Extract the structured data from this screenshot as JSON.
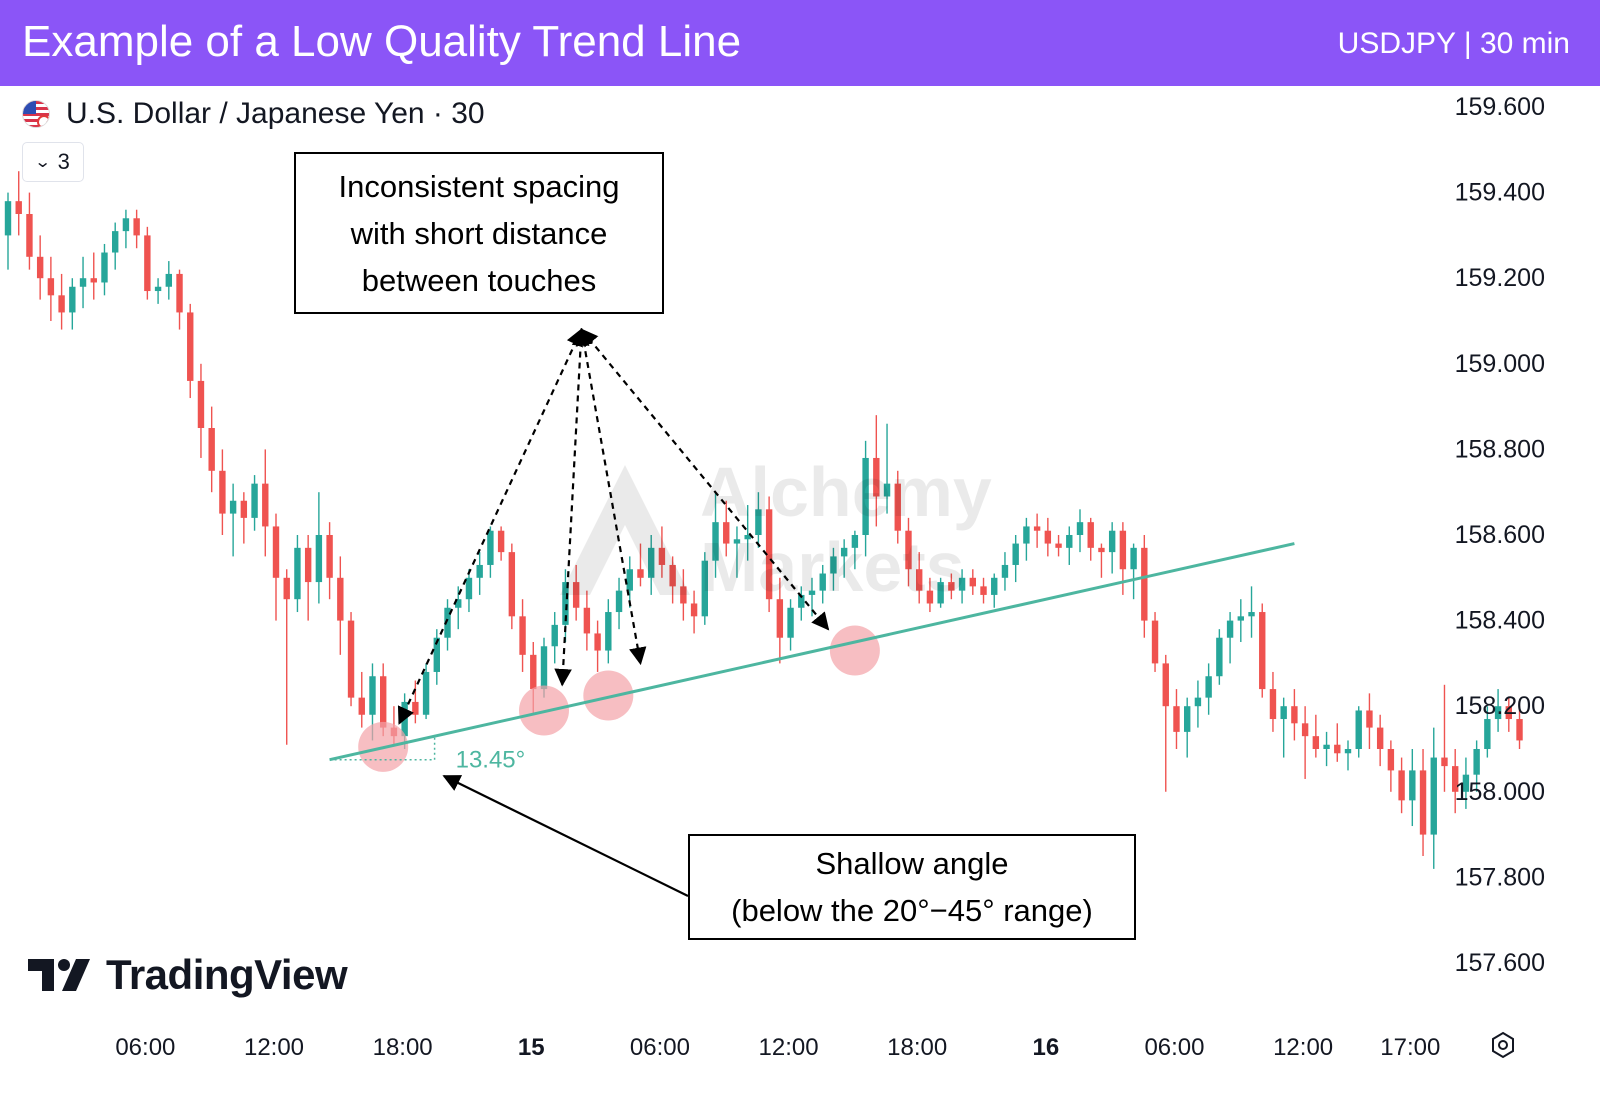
{
  "banner": {
    "title": "Example of a Low Quality Trend Line",
    "subtitle": "USDJPY | 30 min"
  },
  "header": {
    "symbol_title": "U.S. Dollar / Japanese Yen · 30",
    "indicator_count": "3"
  },
  "watermark": {
    "line1": "Alchemy",
    "line2": "Markets"
  },
  "brand": {
    "logo_text": "TradingView"
  },
  "colors": {
    "banner": "#8b55f7",
    "up_candle": "#26a69a",
    "down_candle": "#ef5350",
    "trend_line": "#4db6a0",
    "touch_marker": "#f4a3a8"
  },
  "annotations": {
    "spacing": [
      "Inconsistent spacing",
      "with short distance",
      "between touches"
    ],
    "angle": [
      "Shallow angle",
      "(below the 20°−45° range)"
    ]
  },
  "chart_data": {
    "type": "candlestick",
    "symbol": "USDJPY",
    "interval": "30 min",
    "y_axis": {
      "ticks": [
        {
          "value": 159.6,
          "label": "159.600"
        },
        {
          "value": 159.4,
          "label": "159.400"
        },
        {
          "value": 159.2,
          "label": "159.200"
        },
        {
          "value": 159.0,
          "label": "159.000"
        },
        {
          "value": 158.8,
          "label": "158.800"
        },
        {
          "value": 158.6,
          "label": "158.600"
        },
        {
          "value": 158.4,
          "label": "158.400"
        },
        {
          "value": 158.2,
          "label": "158.200"
        },
        {
          "value": 158.0,
          "label": "158.000"
        },
        {
          "value": 157.8,
          "label": "157.800"
        },
        {
          "value": 157.6,
          "label": "157.600"
        }
      ],
      "range": [
        157.55,
        159.62
      ]
    },
    "x_axis": {
      "ticks": [
        {
          "index": 13,
          "label": "06:00",
          "bold": false
        },
        {
          "index": 25,
          "label": "12:00",
          "bold": false
        },
        {
          "index": 37,
          "label": "18:00",
          "bold": false
        },
        {
          "index": 49,
          "label": "15",
          "bold": true
        },
        {
          "index": 61,
          "label": "06:00",
          "bold": false
        },
        {
          "index": 73,
          "label": "12:00",
          "bold": false
        },
        {
          "index": 85,
          "label": "18:00",
          "bold": false
        },
        {
          "index": 97,
          "label": "16",
          "bold": true
        },
        {
          "index": 109,
          "label": "06:00",
          "bold": false
        },
        {
          "index": 121,
          "label": "12:00",
          "bold": false
        },
        {
          "index": 131,
          "label": "17:00",
          "bold": false
        }
      ]
    },
    "candles": [
      [
        159.3,
        159.4,
        159.22,
        159.38
      ],
      [
        159.38,
        159.45,
        159.3,
        159.35
      ],
      [
        159.35,
        159.4,
        159.22,
        159.25
      ],
      [
        159.25,
        159.3,
        159.15,
        159.2
      ],
      [
        159.2,
        159.25,
        159.1,
        159.16
      ],
      [
        159.16,
        159.21,
        159.08,
        159.12
      ],
      [
        159.12,
        159.2,
        159.08,
        159.18
      ],
      [
        159.18,
        159.25,
        159.13,
        159.2
      ],
      [
        159.2,
        159.26,
        159.15,
        159.19
      ],
      [
        159.19,
        159.28,
        159.16,
        159.26
      ],
      [
        159.26,
        159.33,
        159.22,
        159.31
      ],
      [
        159.31,
        159.36,
        159.27,
        159.34
      ],
      [
        159.34,
        159.36,
        159.27,
        159.3
      ],
      [
        159.3,
        159.32,
        159.15,
        159.17
      ],
      [
        159.17,
        159.2,
        159.14,
        159.18
      ],
      [
        159.18,
        159.24,
        159.15,
        159.21
      ],
      [
        159.21,
        159.22,
        159.08,
        159.12
      ],
      [
        159.12,
        159.14,
        158.92,
        158.96
      ],
      [
        158.96,
        159.0,
        158.78,
        158.85
      ],
      [
        158.85,
        158.9,
        158.7,
        158.75
      ],
      [
        158.75,
        158.8,
        158.6,
        158.65
      ],
      [
        158.65,
        158.72,
        158.55,
        158.68
      ],
      [
        158.68,
        158.7,
        158.58,
        158.64
      ],
      [
        158.64,
        158.74,
        158.61,
        158.72
      ],
      [
        158.72,
        158.8,
        158.55,
        158.62
      ],
      [
        158.62,
        158.65,
        158.4,
        158.5
      ],
      [
        158.5,
        158.52,
        158.11,
        158.45
      ],
      [
        158.45,
        158.6,
        158.42,
        158.57
      ],
      [
        158.57,
        158.6,
        158.4,
        158.49
      ],
      [
        158.49,
        158.7,
        158.44,
        158.6
      ],
      [
        158.6,
        158.63,
        158.45,
        158.5
      ],
      [
        158.5,
        158.55,
        158.32,
        158.4
      ],
      [
        158.4,
        158.42,
        158.2,
        158.22
      ],
      [
        158.22,
        158.28,
        158.15,
        158.18
      ],
      [
        158.18,
        158.3,
        158.12,
        158.27
      ],
      [
        158.27,
        158.3,
        158.13,
        158.15
      ],
      [
        158.15,
        158.2,
        158.11,
        158.13
      ],
      [
        158.13,
        158.23,
        158.1,
        158.21
      ],
      [
        158.21,
        158.26,
        158.16,
        158.18
      ],
      [
        158.18,
        158.3,
        158.17,
        158.28
      ],
      [
        158.28,
        158.38,
        158.25,
        158.36
      ],
      [
        158.36,
        158.45,
        158.33,
        158.43
      ],
      [
        158.43,
        158.48,
        158.38,
        158.45
      ],
      [
        158.45,
        158.52,
        158.42,
        158.5
      ],
      [
        158.5,
        158.56,
        158.46,
        158.53
      ],
      [
        158.53,
        158.62,
        158.5,
        158.61
      ],
      [
        158.61,
        158.62,
        158.54,
        158.56
      ],
      [
        158.56,
        158.58,
        158.38,
        158.41
      ],
      [
        158.41,
        158.45,
        158.28,
        158.32
      ],
      [
        158.32,
        158.35,
        158.18,
        158.24
      ],
      [
        158.24,
        158.36,
        158.22,
        158.34
      ],
      [
        158.34,
        158.42,
        158.3,
        158.39
      ],
      [
        158.39,
        158.52,
        158.35,
        158.49
      ],
      [
        158.49,
        158.53,
        158.4,
        158.43
      ],
      [
        158.43,
        158.47,
        158.33,
        158.37
      ],
      [
        158.37,
        158.4,
        158.28,
        158.33
      ],
      [
        158.33,
        158.45,
        158.3,
        158.42
      ],
      [
        158.42,
        158.5,
        158.38,
        158.47
      ],
      [
        158.47,
        158.55,
        158.43,
        158.52
      ],
      [
        158.52,
        158.58,
        158.48,
        158.5
      ],
      [
        158.5,
        158.6,
        158.46,
        158.57
      ],
      [
        158.57,
        158.62,
        158.5,
        158.53
      ],
      [
        158.53,
        158.55,
        158.44,
        158.48
      ],
      [
        158.48,
        158.52,
        158.4,
        158.44
      ],
      [
        158.44,
        158.47,
        158.37,
        158.41
      ],
      [
        158.41,
        158.56,
        158.39,
        158.54
      ],
      [
        158.54,
        158.7,
        158.5,
        158.63
      ],
      [
        158.63,
        158.68,
        158.55,
        158.58
      ],
      [
        158.58,
        158.62,
        158.5,
        158.59
      ],
      [
        158.59,
        158.67,
        158.54,
        158.6
      ],
      [
        158.6,
        158.7,
        158.57,
        158.66
      ],
      [
        158.66,
        158.69,
        158.42,
        158.45
      ],
      [
        158.45,
        158.5,
        158.3,
        158.36
      ],
      [
        158.36,
        158.45,
        158.33,
        158.43
      ],
      [
        158.43,
        158.48,
        158.4,
        158.46
      ],
      [
        158.46,
        158.5,
        158.41,
        158.47
      ],
      [
        158.47,
        158.53,
        158.44,
        158.51
      ],
      [
        158.51,
        158.57,
        158.47,
        158.55
      ],
      [
        158.55,
        158.59,
        158.5,
        158.57
      ],
      [
        158.57,
        158.61,
        158.52,
        158.6
      ],
      [
        158.6,
        158.82,
        158.55,
        158.78
      ],
      [
        158.78,
        158.88,
        158.62,
        158.69
      ],
      [
        158.69,
        158.86,
        158.65,
        158.72
      ],
      [
        158.72,
        158.75,
        158.58,
        158.61
      ],
      [
        158.61,
        158.64,
        158.48,
        158.52
      ],
      [
        158.52,
        158.56,
        158.44,
        158.47
      ],
      [
        158.47,
        158.5,
        158.42,
        158.44
      ],
      [
        158.44,
        158.5,
        158.43,
        158.49
      ],
      [
        158.49,
        158.51,
        158.45,
        158.47
      ],
      [
        158.47,
        158.52,
        158.44,
        158.5
      ],
      [
        158.5,
        158.52,
        158.46,
        158.48
      ],
      [
        158.48,
        158.5,
        158.44,
        158.46
      ],
      [
        158.46,
        158.51,
        158.43,
        158.5
      ],
      [
        158.5,
        158.56,
        158.47,
        158.53
      ],
      [
        158.53,
        158.6,
        158.49,
        158.58
      ],
      [
        158.58,
        158.64,
        158.54,
        158.62
      ],
      [
        158.62,
        158.65,
        158.57,
        158.61
      ],
      [
        158.61,
        158.64,
        158.55,
        158.58
      ],
      [
        158.58,
        158.6,
        158.55,
        158.57
      ],
      [
        158.57,
        158.62,
        158.53,
        158.6
      ],
      [
        158.6,
        158.66,
        158.56,
        158.63
      ],
      [
        158.63,
        158.64,
        158.54,
        158.57
      ],
      [
        158.57,
        158.58,
        158.5,
        158.56
      ],
      [
        158.56,
        158.63,
        158.51,
        158.61
      ],
      [
        158.61,
        158.63,
        158.46,
        158.52
      ],
      [
        158.52,
        158.58,
        158.45,
        158.57
      ],
      [
        158.57,
        158.6,
        158.36,
        158.4
      ],
      [
        158.4,
        158.42,
        158.28,
        158.3
      ],
      [
        158.3,
        158.32,
        158.0,
        158.2
      ],
      [
        158.2,
        158.24,
        158.1,
        158.14
      ],
      [
        158.14,
        158.22,
        158.08,
        158.2
      ],
      [
        158.2,
        158.26,
        158.15,
        158.22
      ],
      [
        158.22,
        158.3,
        158.18,
        158.27
      ],
      [
        158.27,
        158.38,
        158.25,
        158.36
      ],
      [
        158.36,
        158.42,
        158.3,
        158.4
      ],
      [
        158.4,
        158.45,
        158.35,
        158.41
      ],
      [
        158.41,
        158.48,
        158.36,
        158.42
      ],
      [
        158.42,
        158.44,
        158.22,
        158.24
      ],
      [
        158.24,
        158.28,
        158.14,
        158.17
      ],
      [
        158.17,
        158.22,
        158.08,
        158.2
      ],
      [
        158.2,
        158.24,
        158.12,
        158.16
      ],
      [
        158.16,
        158.2,
        158.03,
        158.13
      ],
      [
        158.13,
        158.18,
        158.08,
        158.1
      ],
      [
        158.1,
        158.14,
        158.06,
        158.11
      ],
      [
        158.11,
        158.16,
        158.07,
        158.09
      ],
      [
        158.09,
        158.12,
        158.05,
        158.1
      ],
      [
        158.1,
        158.2,
        158.08,
        158.19
      ],
      [
        158.19,
        158.23,
        158.1,
        158.15
      ],
      [
        158.15,
        158.18,
        158.06,
        158.1
      ],
      [
        158.1,
        158.12,
        158.0,
        158.05
      ],
      [
        158.05,
        158.08,
        157.95,
        157.98
      ],
      [
        157.98,
        158.1,
        157.92,
        158.05
      ],
      [
        158.05,
        158.1,
        157.85,
        157.9
      ],
      [
        157.9,
        158.15,
        157.82,
        158.08
      ],
      [
        158.08,
        158.25,
        158.0,
        158.06
      ],
      [
        158.06,
        158.1,
        157.95,
        158.0
      ],
      [
        158.0,
        158.08,
        157.96,
        158.04
      ],
      [
        158.04,
        158.12,
        158.0,
        158.1
      ],
      [
        158.1,
        158.2,
        158.08,
        158.17
      ],
      [
        158.17,
        158.24,
        158.14,
        158.2
      ],
      [
        158.2,
        158.22,
        158.14,
        158.17
      ],
      [
        158.17,
        158.2,
        158.1,
        158.12
      ]
    ],
    "trend_line": {
      "from": {
        "index": 30,
        "price": 158.075
      },
      "to": {
        "index": 120,
        "price": 158.58
      },
      "angle_label": "13.45°"
    },
    "touches": [
      {
        "index": 35,
        "price": 158.105
      },
      {
        "index": 50,
        "price": 158.19
      },
      {
        "index": 56,
        "price": 158.225
      },
      {
        "index": 79,
        "price": 158.33
      }
    ],
    "arrow_origin": {
      "index": 53.5,
      "price": 159.08
    },
    "arrow_targets": [
      {
        "index": 36.5,
        "price": 158.16
      },
      {
        "index": 51.7,
        "price": 158.25
      },
      {
        "index": 59,
        "price": 158.3
      },
      {
        "index": 76.5,
        "price": 158.38
      }
    ]
  }
}
